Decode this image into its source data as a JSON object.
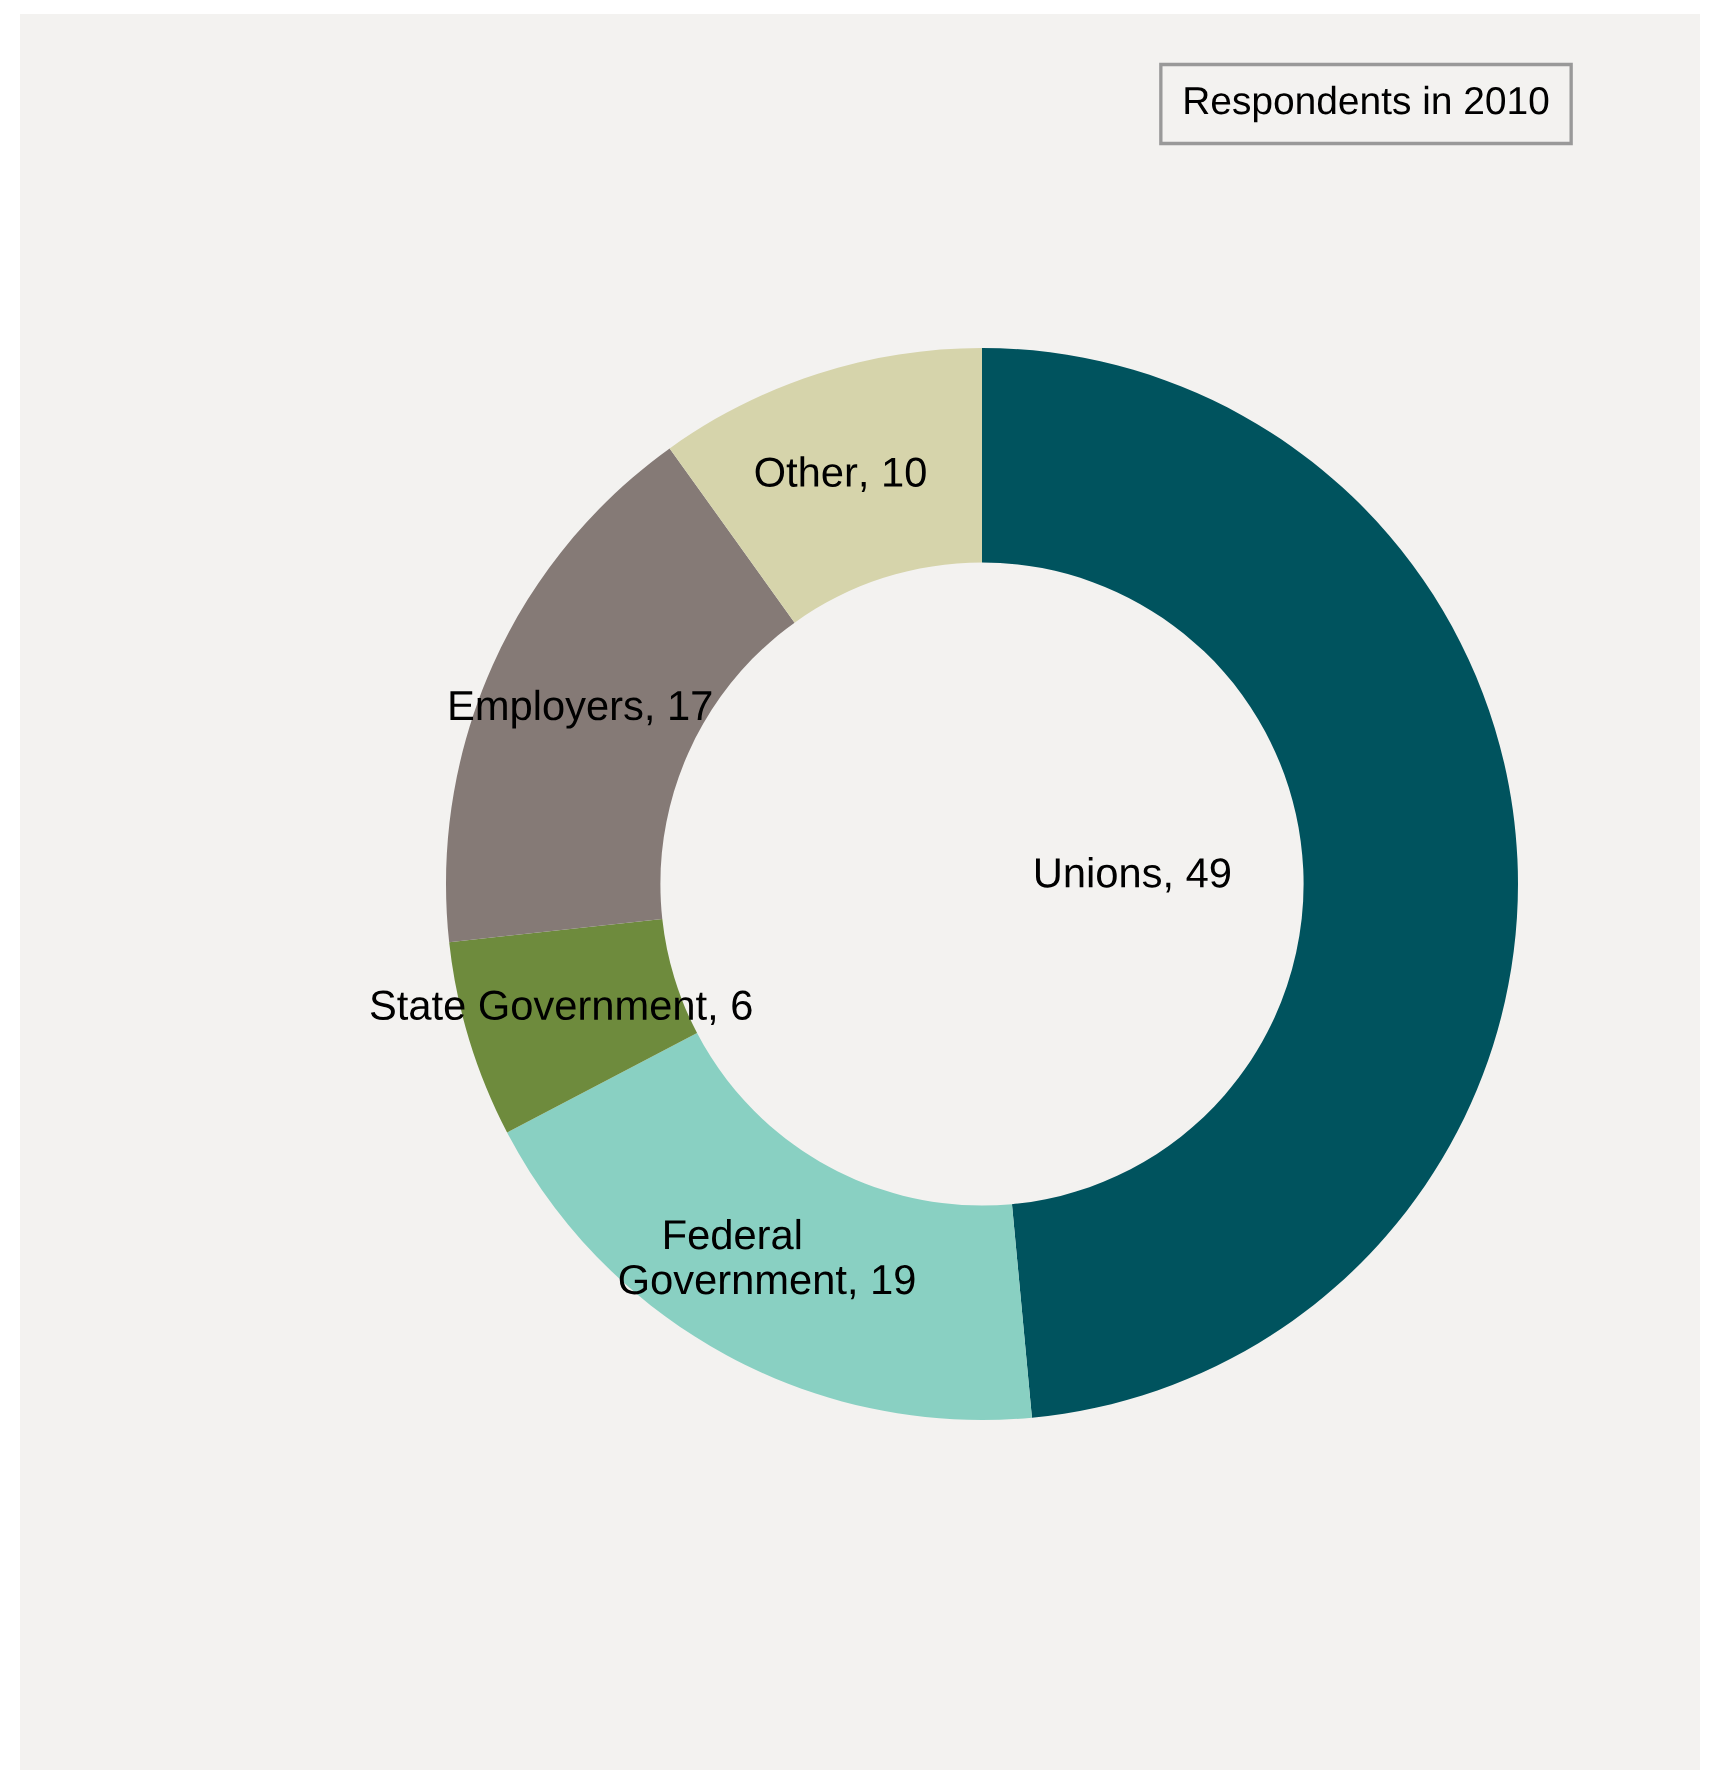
{
  "chart_data": {
    "type": "donut",
    "title": "Respondents in 2010",
    "categories": [
      "Unions",
      "Federal Government",
      "State Government",
      "Employers",
      "Other"
    ],
    "values": [
      49,
      19,
      6,
      17,
      10
    ],
    "value_labels": [
      ", 49",
      ", 19",
      ", 6",
      ", 17",
      ", 10"
    ],
    "colors": [
      "#00535e",
      "#89d0c2",
      "#6e8b3d",
      "#857a76",
      "#d6d4ab"
    ]
  }
}
